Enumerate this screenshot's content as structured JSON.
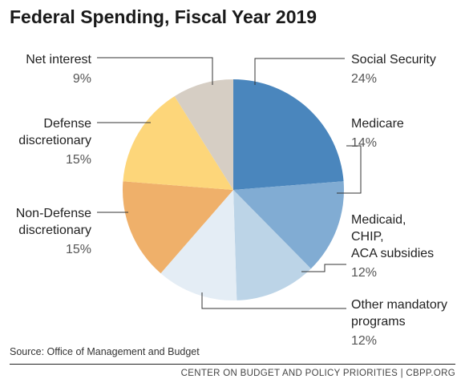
{
  "title": "Federal Spending, Fiscal Year 2019",
  "chart_data": {
    "type": "pie",
    "title": "Federal Spending, Fiscal Year 2019",
    "slices": [
      {
        "label_lines": [
          "Social Security"
        ],
        "value_label": "24%",
        "value": 24,
        "color": "#4a86bd"
      },
      {
        "label_lines": [
          "Medicare"
        ],
        "value_label": "14%",
        "value": 14,
        "color": "#81acd3"
      },
      {
        "label_lines": [
          "Medicaid,",
          "CHIP,",
          "ACA subsidies"
        ],
        "value_label": "12%",
        "value": 12,
        "color": "#bcd4e7"
      },
      {
        "label_lines": [
          "Other mandatory",
          "programs"
        ],
        "value_label": "12%",
        "value": 12,
        "color": "#e4edf5"
      },
      {
        "label_lines": [
          "Non-Defense",
          "discretionary"
        ],
        "value_label": "15%",
        "value": 15,
        "color": "#efb06a"
      },
      {
        "label_lines": [
          "Defense",
          "discretionary"
        ],
        "value_label": "15%",
        "value": 15,
        "color": "#fdd67a"
      },
      {
        "label_lines": [
          "Net interest"
        ],
        "value_label": "9%",
        "value": 9,
        "color": "#d6cec4"
      }
    ]
  },
  "source": "Source: Office of Management and Budget",
  "credit": "CENTER ON BUDGET AND POLICY PRIORITIES | CBPP.ORG"
}
